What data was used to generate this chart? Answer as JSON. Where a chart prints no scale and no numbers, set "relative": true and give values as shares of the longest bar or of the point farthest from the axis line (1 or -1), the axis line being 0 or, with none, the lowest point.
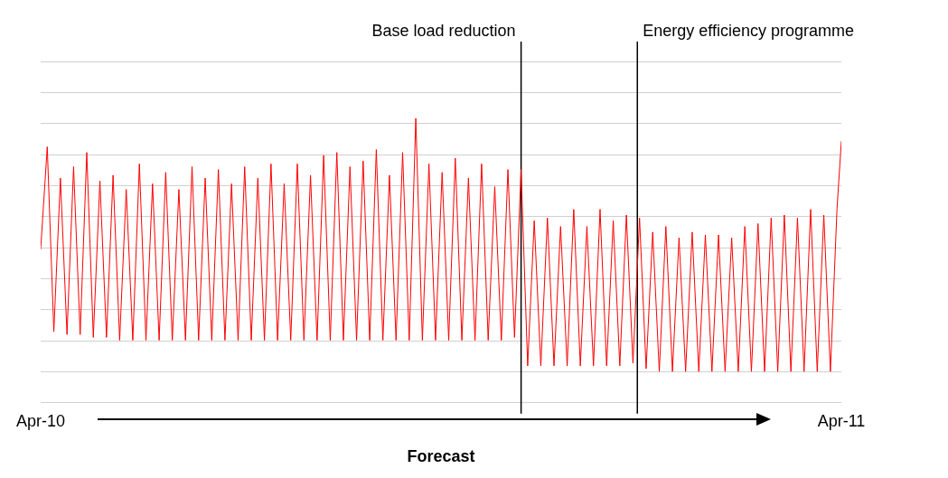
{
  "chart_data": {
    "type": "line",
    "relative": true,
    "xlabel": "Forecast",
    "grid": "y",
    "xlim": [
      "2010-04",
      "2011-04"
    ],
    "xticks": [
      {
        "value": "2010-04",
        "label": "Apr-10"
      },
      {
        "value": "2011-04",
        "label": "Apr-11"
      }
    ],
    "ref_lines": [
      {
        "axis": "x",
        "value": "2010-11-06",
        "label": "Base load reduction",
        "color": "#000000"
      },
      {
        "axis": "x",
        "value": "2010-12-29",
        "label": "Energy efficiency programme",
        "color": "#000000"
      }
    ],
    "series": [
      {
        "color": "#ff0000",
        "x": [
          "2010-04-01",
          "2010-04-04",
          "2010-04-07",
          "2010-04-10",
          "2010-04-13",
          "2010-04-16",
          "2010-04-19",
          "2010-04-22",
          "2010-04-25",
          "2010-04-28",
          "2010-05-01",
          "2010-05-04",
          "2010-05-07",
          "2010-05-10",
          "2010-05-13",
          "2010-05-16",
          "2010-05-19",
          "2010-05-22",
          "2010-05-25",
          "2010-05-28",
          "2010-05-31",
          "2010-06-03",
          "2010-06-06",
          "2010-06-09",
          "2010-06-12",
          "2010-06-15",
          "2010-06-18",
          "2010-06-21",
          "2010-06-24",
          "2010-06-27",
          "2010-06-30",
          "2010-07-03",
          "2010-07-06",
          "2010-07-09",
          "2010-07-12",
          "2010-07-15",
          "2010-07-18",
          "2010-07-21",
          "2010-07-24",
          "2010-07-27",
          "2010-07-30",
          "2010-08-02",
          "2010-08-05",
          "2010-08-08",
          "2010-08-11",
          "2010-08-14",
          "2010-08-17",
          "2010-08-20",
          "2010-08-23",
          "2010-08-26",
          "2010-08-29",
          "2010-09-01",
          "2010-09-04",
          "2010-09-07",
          "2010-09-10",
          "2010-09-13",
          "2010-09-16",
          "2010-09-19",
          "2010-09-22",
          "2010-09-25",
          "2010-09-28",
          "2010-10-01",
          "2010-10-04",
          "2010-10-07",
          "2010-10-10",
          "2010-10-13",
          "2010-10-16",
          "2010-10-19",
          "2010-10-22",
          "2010-10-25",
          "2010-10-28",
          "2010-10-31",
          "2010-11-03",
          "2010-11-06",
          "2010-11-09",
          "2010-11-12",
          "2010-11-15",
          "2010-11-18",
          "2010-11-21",
          "2010-11-24",
          "2010-11-27",
          "2010-11-30",
          "2010-12-03",
          "2010-12-06",
          "2010-12-09",
          "2010-12-12",
          "2010-12-15",
          "2010-12-18",
          "2010-12-21",
          "2010-12-24",
          "2010-12-27",
          "2010-12-30",
          "2011-01-02",
          "2011-01-05",
          "2011-01-08",
          "2011-01-11",
          "2011-01-14",
          "2011-01-17",
          "2011-01-20",
          "2011-01-23",
          "2011-01-26",
          "2011-01-29",
          "2011-02-01",
          "2011-02-04",
          "2011-02-07",
          "2011-02-10",
          "2011-02-13",
          "2011-02-16",
          "2011-02-19",
          "2011-02-22",
          "2011-02-25",
          "2011-02-28",
          "2011-03-03",
          "2011-03-06",
          "2011-03-09",
          "2011-03-12",
          "2011-03-15",
          "2011-03-18",
          "2011-03-21",
          "2011-03-24",
          "2011-03-27",
          "2011-03-30",
          "2011-04-01"
        ],
        "values": [
          0.54,
          0.9,
          0.25,
          0.79,
          0.24,
          0.83,
          0.24,
          0.88,
          0.23,
          0.78,
          0.23,
          0.8,
          0.22,
          0.75,
          0.22,
          0.84,
          0.22,
          0.77,
          0.22,
          0.81,
          0.22,
          0.75,
          0.22,
          0.83,
          0.22,
          0.79,
          0.22,
          0.82,
          0.22,
          0.77,
          0.22,
          0.83,
          0.22,
          0.79,
          0.22,
          0.84,
          0.22,
          0.77,
          0.22,
          0.84,
          0.22,
          0.8,
          0.22,
          0.87,
          0.22,
          0.88,
          0.22,
          0.83,
          0.22,
          0.85,
          0.22,
          0.89,
          0.22,
          0.8,
          0.22,
          0.88,
          0.22,
          1.0,
          0.22,
          0.84,
          0.22,
          0.81,
          0.22,
          0.86,
          0.22,
          0.79,
          0.22,
          0.84,
          0.22,
          0.76,
          0.22,
          0.82,
          0.23,
          0.82,
          0.13,
          0.64,
          0.13,
          0.65,
          0.13,
          0.62,
          0.13,
          0.68,
          0.13,
          0.62,
          0.13,
          0.68,
          0.13,
          0.64,
          0.13,
          0.66,
          0.14,
          0.65,
          0.12,
          0.6,
          0.11,
          0.62,
          0.11,
          0.58,
          0.11,
          0.6,
          0.11,
          0.59,
          0.11,
          0.59,
          0.11,
          0.58,
          0.11,
          0.62,
          0.11,
          0.63,
          0.11,
          0.65,
          0.11,
          0.66,
          0.11,
          0.65,
          0.11,
          0.68,
          0.11,
          0.66,
          0.11,
          0.68,
          0.92
        ]
      }
    ]
  }
}
